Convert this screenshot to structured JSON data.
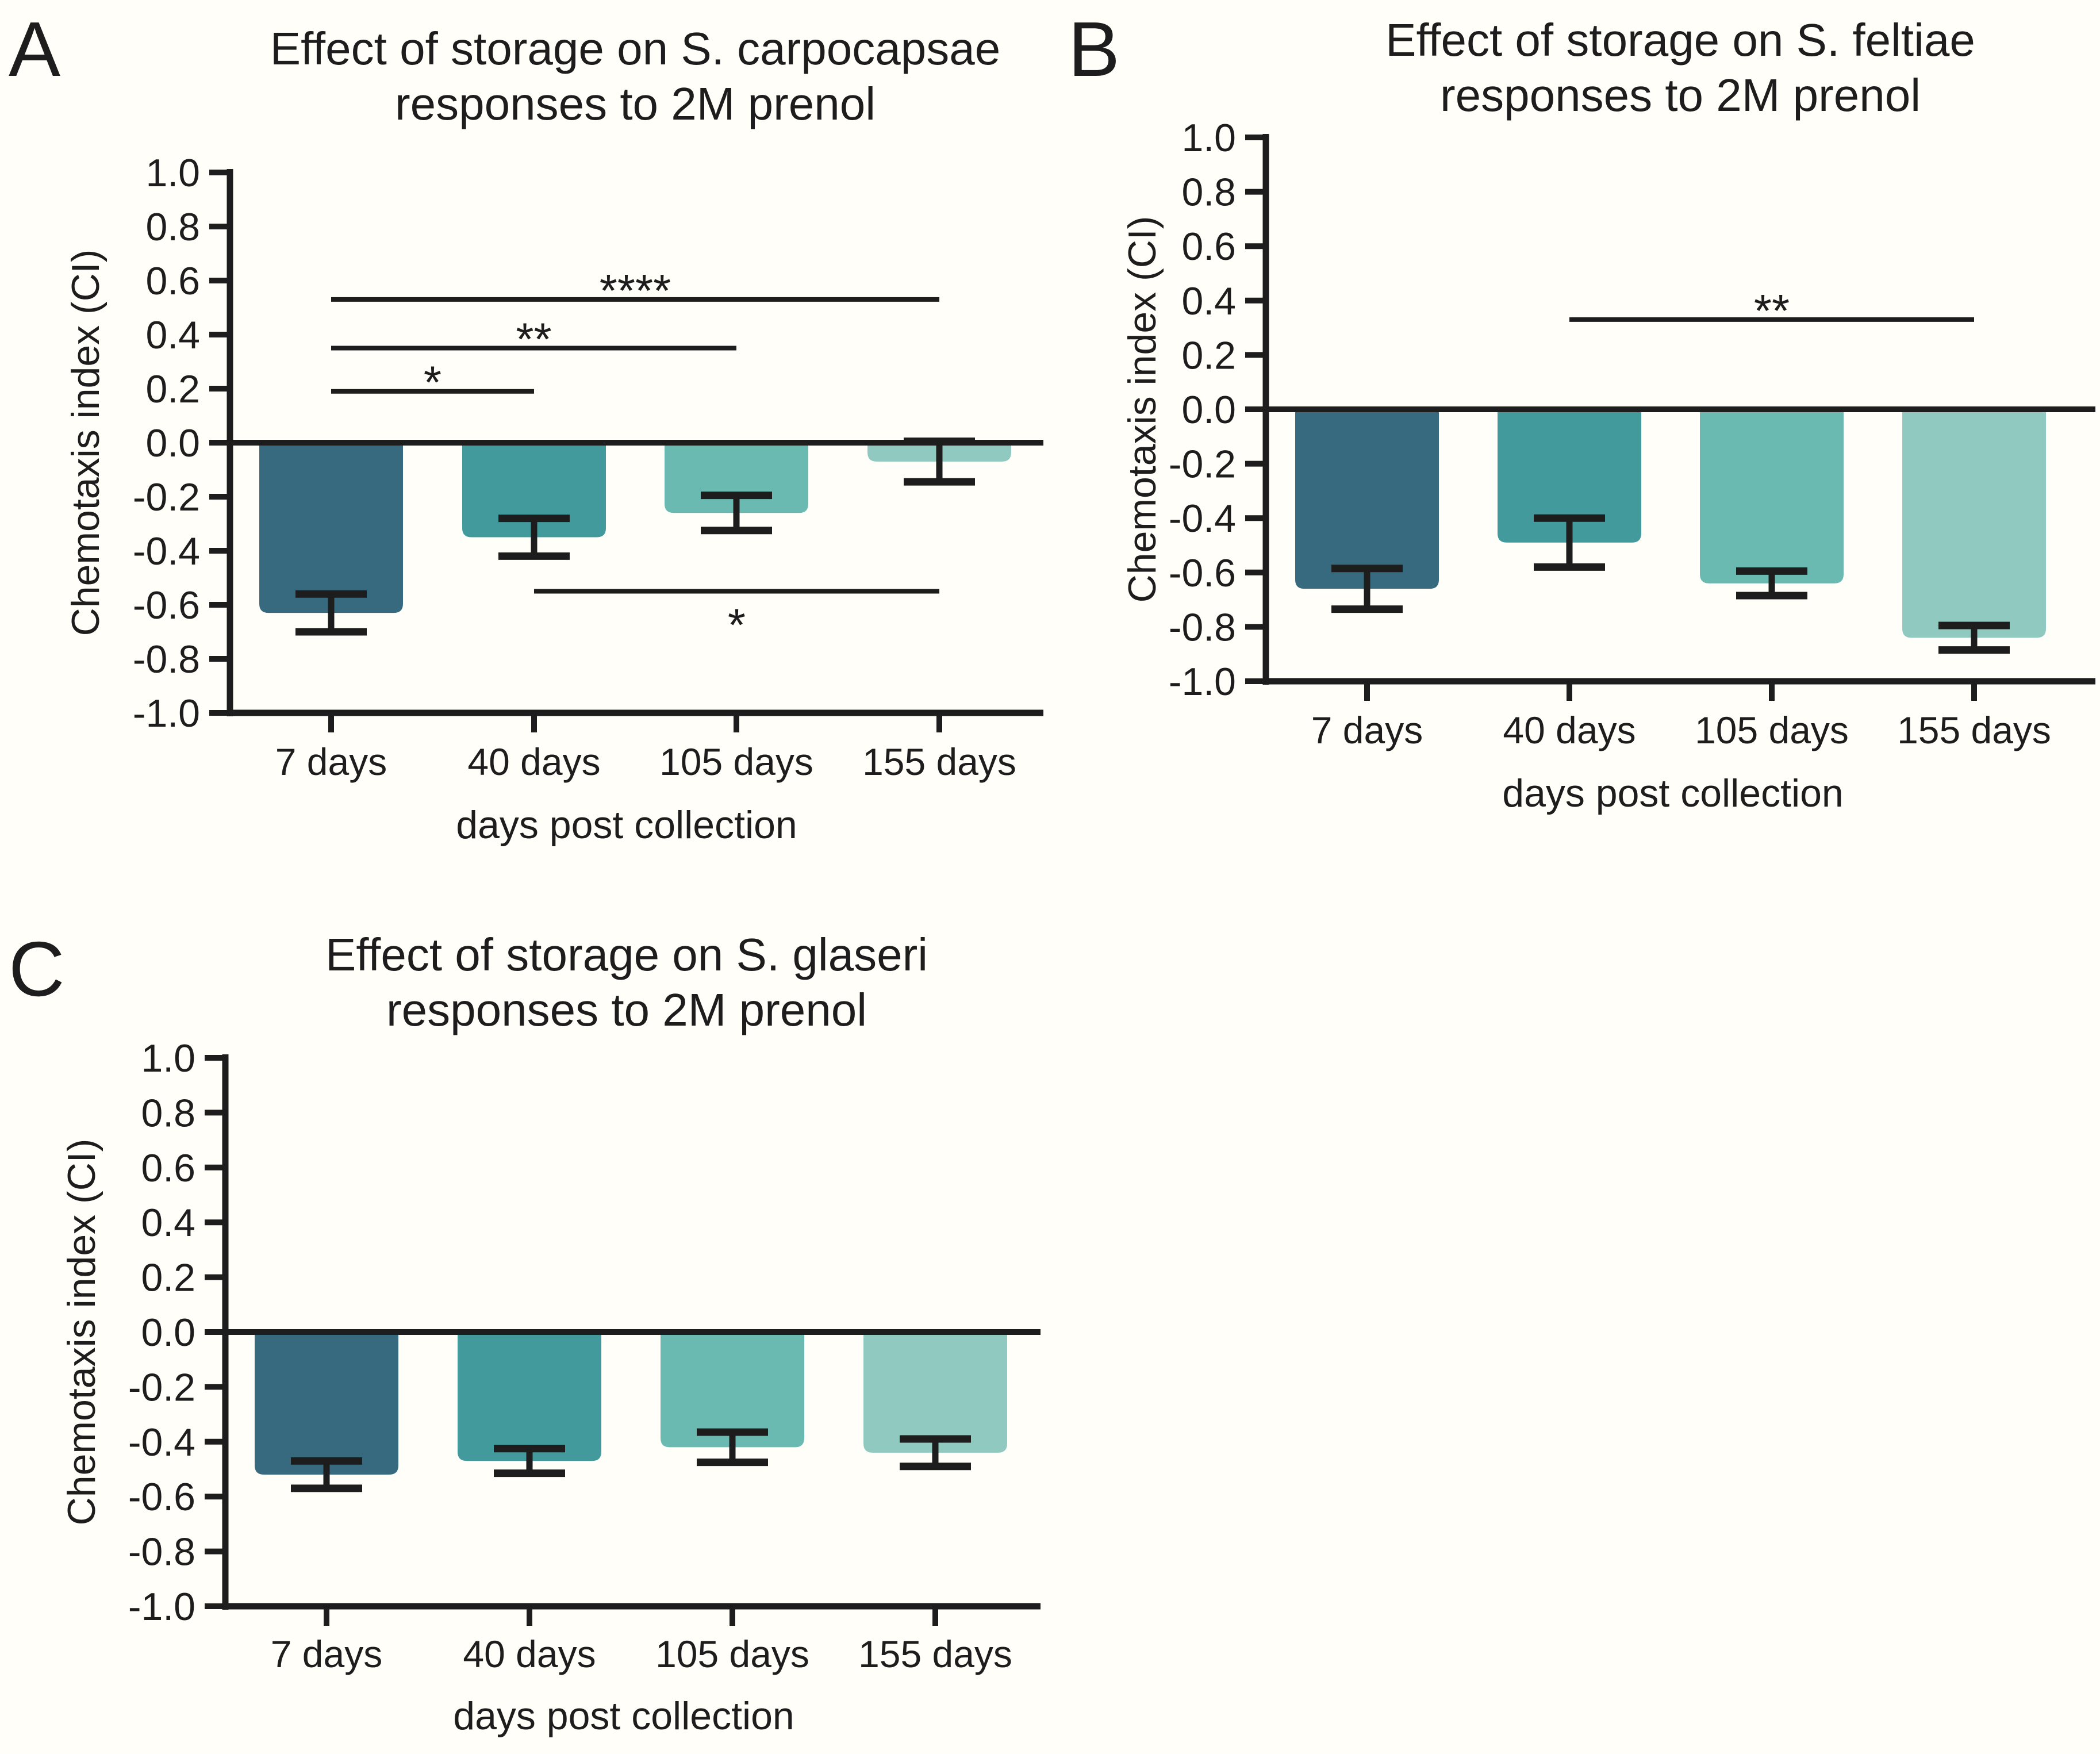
{
  "figure": {
    "background_color": "#fffef8",
    "ink_color": "#1d1d1d",
    "bar_colors": [
      "#376a7e",
      "#429a9c",
      "#6bbab2",
      "#90c9bf"
    ]
  },
  "panels": {
    "a_letter": "A",
    "b_letter": "B",
    "c_letter": "C"
  },
  "chart_data": [
    {
      "panel": "A",
      "type": "bar",
      "title_line1": "Effect of storage on S. carpocapsae",
      "title_line2": "responses to 2M prenol",
      "xlabel": "days post collection",
      "ylabel": "Chemotaxis index (CI)",
      "ylim": [
        -1.0,
        1.0
      ],
      "y_ticks": [
        "1.0",
        "0.8",
        "0.6",
        "0.4",
        "0.2",
        "0.0",
        "-0.2",
        "-0.4",
        "-0.6",
        "-0.8",
        "-1.0"
      ],
      "categories": [
        "7 days",
        "40 days",
        "105 days",
        "155 days"
      ],
      "values": [
        -0.63,
        -0.35,
        -0.26,
        -0.07
      ],
      "errors": [
        0.07,
        0.07,
        0.065,
        0.075
      ],
      "significance": [
        {
          "from": 0,
          "to": 1,
          "at": 0.19,
          "label": "*",
          "position": "above"
        },
        {
          "from": 0,
          "to": 2,
          "at": 0.35,
          "label": "**",
          "position": "above"
        },
        {
          "from": 0,
          "to": 3,
          "at": 0.53,
          "label": "****",
          "position": "above"
        },
        {
          "from": 1,
          "to": 3,
          "at": -0.55,
          "label": "*",
          "position": "below"
        }
      ]
    },
    {
      "panel": "B",
      "type": "bar",
      "title_line1": "Effect of storage on S. feltiae",
      "title_line2": "responses to 2M prenol",
      "xlabel": "days post collection",
      "ylabel": "Chemotaxis index (CI)",
      "ylim": [
        -1.0,
        1.0
      ],
      "y_ticks": [
        "1.0",
        "0.8",
        "0.6",
        "0.4",
        "0.2",
        "0.0",
        "-0.2",
        "-0.4",
        "-0.6",
        "-0.8",
        "-1.0"
      ],
      "categories": [
        "7 days",
        "40 days",
        "105 days",
        "155 days"
      ],
      "values": [
        -0.66,
        -0.49,
        -0.64,
        -0.84
      ],
      "errors": [
        0.075,
        0.09,
        0.045,
        0.045
      ],
      "significance": [
        {
          "from": 1,
          "to": 3,
          "at": 0.33,
          "label": "**",
          "position": "above"
        }
      ]
    },
    {
      "panel": "C",
      "type": "bar",
      "title_line1": "Effect of storage on S. glaseri",
      "title_line2": "responses to 2M prenol",
      "xlabel": "days post collection",
      "ylabel": "Chemotaxis index (CI)",
      "ylim": [
        -1.0,
        1.0
      ],
      "y_ticks": [
        "1.0",
        "0.8",
        "0.6",
        "0.4",
        "0.2",
        "0.0",
        "-0.2",
        "-0.4",
        "-0.6",
        "-0.8",
        "-1.0"
      ],
      "categories": [
        "7 days",
        "40 days",
        "105 days",
        "155 days"
      ],
      "values": [
        -0.52,
        -0.47,
        -0.42,
        -0.44
      ],
      "errors": [
        0.05,
        0.045,
        0.055,
        0.05
      ],
      "significance": []
    }
  ]
}
